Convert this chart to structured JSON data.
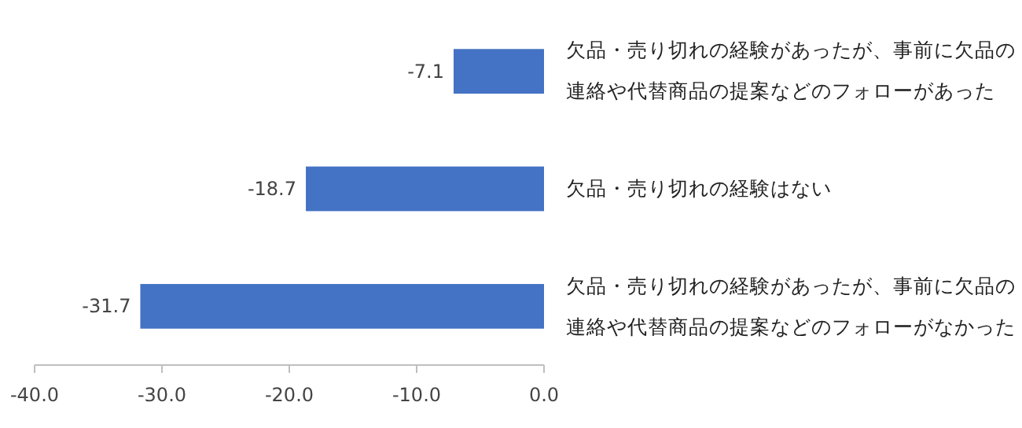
{
  "chart_data": {
    "type": "bar",
    "orientation": "horizontal",
    "categories": [
      "欠品・売り切れの経験があったが、事前に欠品の連絡や代替商品の提案などのフォローがあった",
      "欠品・売り切れの経験はない",
      "欠品・売り切れの経験があったが、事前に欠品の連絡や代替商品の提案などのフォローがなかった"
    ],
    "values": [
      -7.1,
      -18.7,
      -31.7
    ],
    "color": "#4472c4",
    "data_labels": true,
    "xlim": [
      -40,
      0
    ],
    "xticks": [
      {
        "value": -40,
        "label": "-40.0"
      },
      {
        "value": -30,
        "label": "-30.0"
      },
      {
        "value": -20,
        "label": "-20.0"
      },
      {
        "value": -10,
        "label": "-10.0"
      },
      {
        "value": 0,
        "label": "0.0"
      }
    ],
    "grid": false
  }
}
